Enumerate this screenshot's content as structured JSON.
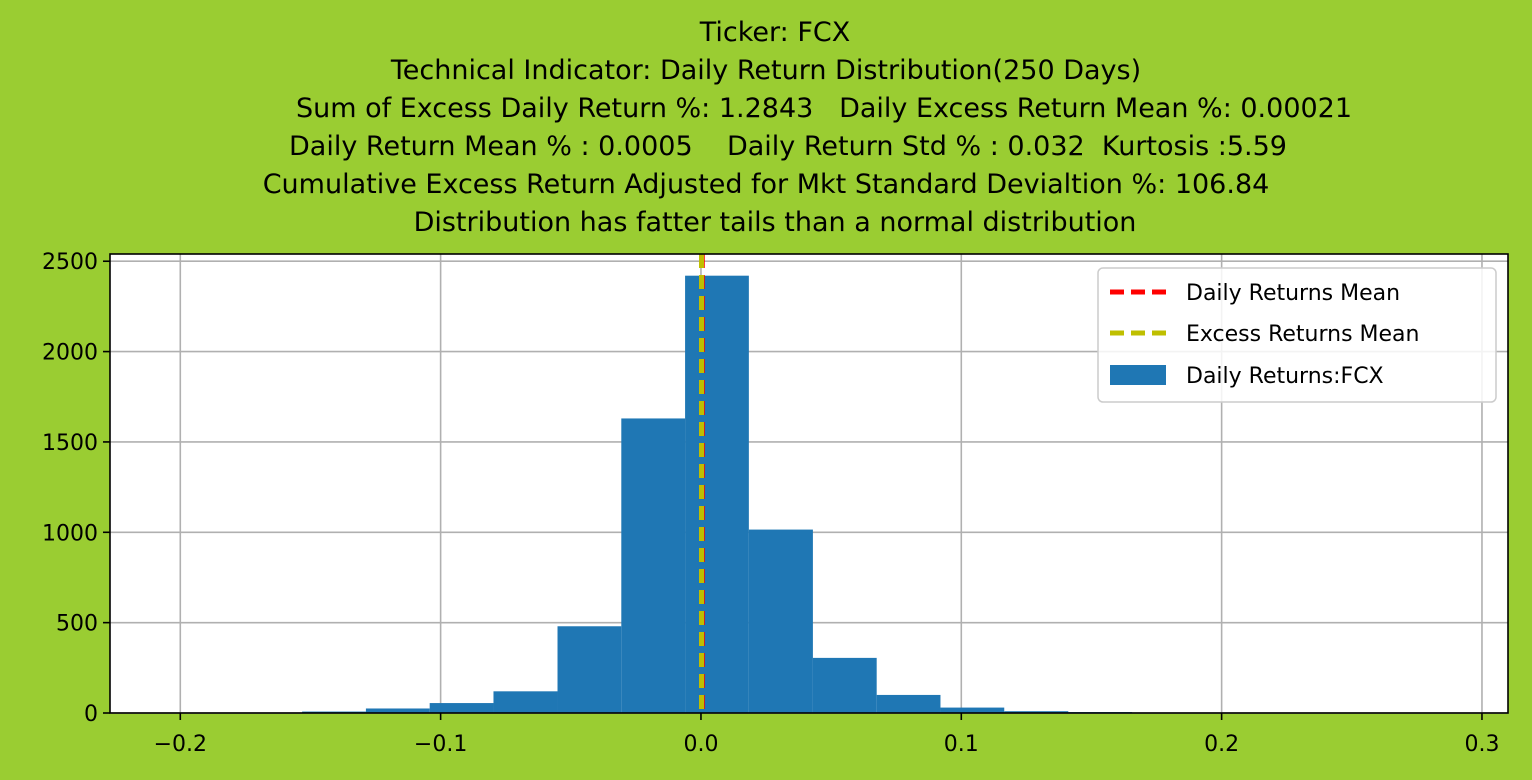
{
  "title_lines": [
    "Ticker: FCX",
    "Technical Indicator: Daily Return Distribution(250 Days)",
    "Sum of Excess Daily Return %: 1.2843   Daily Excess Return Mean %: 0.00021",
    "Daily Return Mean % : 0.0005    Daily Return Std % : 0.032  Kurtosis :5.59",
    "Cumulative Excess Return Adjusted for Mkt Standard Devialtion %: 106.84",
    "Distribution has fatter tails than a normal distribution"
  ],
  "colors": {
    "background": "#9acd32",
    "bars": "#1f77b4",
    "daily_mean_line": "#ff0000",
    "excess_mean_line": "#bfbf00",
    "grid": "#b0b0b0"
  },
  "chart_data": {
    "type": "bar",
    "subtype": "histogram",
    "title": "Ticker: FCX",
    "xlabel": "",
    "ylabel": "",
    "xlim": [
      -0.227,
      0.31
    ],
    "ylim": [
      0,
      2540
    ],
    "grid": true,
    "legend_placement": "upper right",
    "x_ticks": [
      -0.2,
      -0.1,
      0.0,
      0.1,
      0.2,
      0.3
    ],
    "x_tick_labels": [
      "−0.2",
      "−0.1",
      "0.0",
      "0.1",
      "0.2",
      "0.3"
    ],
    "y_ticks": [
      0,
      500,
      1000,
      1500,
      2000,
      2500
    ],
    "y_tick_labels": [
      "0",
      "500",
      "1000",
      "1500",
      "2000",
      "2500"
    ],
    "bin_edges": [
      -0.2023,
      -0.1778,
      -0.1532,
      -0.1287,
      -0.1042,
      -0.0797,
      -0.0551,
      -0.0306,
      -0.0061,
      0.0184,
      0.043,
      0.0675,
      0.092,
      0.1165,
      0.1411,
      0.1656,
      0.1901,
      0.2146,
      0.2392,
      0.2637,
      0.2882
    ],
    "series": [
      {
        "name": "Daily Returns:FCX",
        "values": [
          1,
          2,
          8,
          25,
          55,
          120,
          480,
          1630,
          2420,
          1015,
          305,
          100,
          30,
          10,
          5,
          2,
          1,
          1,
          0,
          1
        ]
      }
    ],
    "vlines": [
      {
        "name": "Daily Returns Mean",
        "x": 0.0005,
        "style": "dashed",
        "color": "#ff0000"
      },
      {
        "name": "Excess Returns Mean",
        "x": 0.00021,
        "style": "dashed",
        "color": "#bfbf00"
      }
    ],
    "legend": [
      "Daily Returns Mean",
      "Excess Returns Mean",
      "Daily Returns:FCX"
    ]
  }
}
